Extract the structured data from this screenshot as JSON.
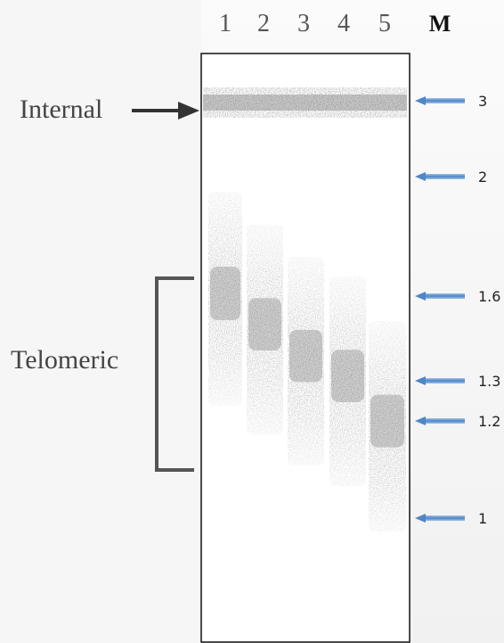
{
  "lanes": {
    "labels": [
      "1",
      "2",
      "3",
      "4",
      "5"
    ],
    "marker_label": "M"
  },
  "markers": [
    "3",
    "2",
    "1.6",
    "1.3",
    "1.2",
    "1"
  ],
  "annotations": {
    "internal": "Internal",
    "telomeric": "Telomeric"
  }
}
